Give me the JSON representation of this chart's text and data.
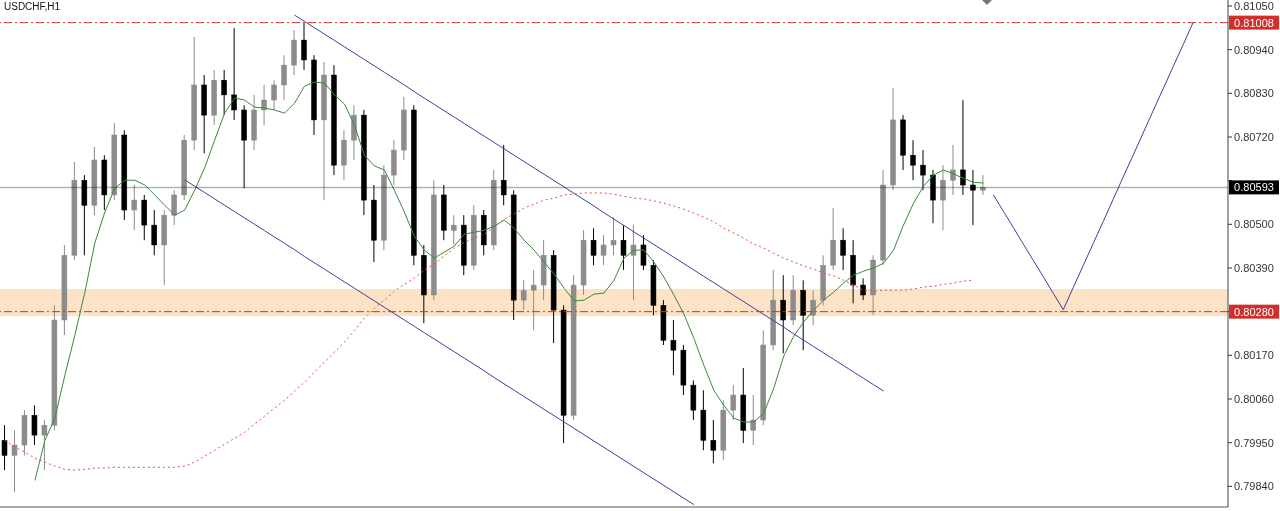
{
  "chart_data": {
    "type": "candlestick",
    "title": "USDCHF,H1",
    "categories": [
      null,
      null,
      null,
      null,
      null,
      null,
      null,
      null,
      null,
      null,
      null,
      null,
      null,
      null,
      null,
      null,
      null,
      null,
      null,
      null,
      null,
      null,
      null,
      null,
      null,
      null,
      null,
      null,
      null,
      null,
      null,
      null,
      null,
      null,
      null,
      null,
      null,
      null,
      null,
      null,
      null,
      null,
      null,
      null,
      null,
      null,
      null,
      null,
      null,
      null,
      null,
      null,
      null,
      null,
      null,
      null,
      null,
      null,
      null,
      null,
      null,
      null,
      null,
      null,
      null,
      null,
      null,
      null,
      null,
      null,
      null,
      null,
      null,
      null,
      null,
      null,
      null,
      null,
      null,
      null,
      null,
      null,
      null,
      null,
      null,
      null,
      null,
      null,
      null,
      null,
      null,
      null,
      null,
      null,
      null,
      null,
      null,
      null,
      null,
      null,
      null,
      null,
      null,
      null,
      null,
      null,
      null,
      null,
      null,
      null,
      null,
      null,
      null,
      null,
      null,
      null,
      null,
      null,
      null,
      null,
      null,
      null,
      null
    ],
    "ohlc": [
      [
        0.79956,
        0.79994,
        0.79881,
        0.79918
      ],
      [
        0.79918,
        0.79981,
        0.79825,
        0.79944
      ],
      [
        0.79944,
        0.80032,
        0.79918,
        0.80019
      ],
      [
        0.80019,
        0.80044,
        0.79944,
        0.79969
      ],
      [
        0.79969,
        0.80007,
        0.79881,
        0.79994
      ],
      [
        0.79994,
        0.80296,
        0.79981,
        0.80259
      ],
      [
        0.80259,
        0.80448,
        0.80221,
        0.80422
      ],
      [
        0.80422,
        0.80657,
        0.8041,
        0.80611
      ],
      [
        0.80611,
        0.80624,
        0.80422,
        0.80548
      ],
      [
        0.80548,
        0.80695,
        0.80523,
        0.80662
      ],
      [
        0.80662,
        0.80674,
        0.80536,
        0.80574
      ],
      [
        0.80574,
        0.80755,
        0.80561,
        0.80725
      ],
      [
        0.80725,
        0.80737,
        0.80511,
        0.80536
      ],
      [
        0.80536,
        0.80599,
        0.80485,
        0.80561
      ],
      [
        0.80561,
        0.80574,
        0.8046,
        0.80498
      ],
      [
        0.80498,
        0.80536,
        0.80422,
        0.80448
      ],
      [
        0.80448,
        0.80536,
        0.80347,
        0.80523
      ],
      [
        0.80523,
        0.80586,
        0.80498,
        0.80574
      ],
      [
        0.80574,
        0.80725,
        0.80561,
        0.80712
      ],
      [
        0.80712,
        0.80972,
        0.80687,
        0.80851
      ],
      [
        0.80851,
        0.80876,
        0.80679,
        0.80775
      ],
      [
        0.80775,
        0.80889,
        0.8075,
        0.80863
      ],
      [
        0.80863,
        0.80889,
        0.80775,
        0.80826
      ],
      [
        0.80826,
        0.80994,
        0.80763,
        0.80788
      ],
      [
        0.80788,
        0.808,
        0.80591,
        0.80712
      ],
      [
        0.80712,
        0.80826,
        0.80687,
        0.80788
      ],
      [
        0.80788,
        0.80851,
        0.8075,
        0.80813
      ],
      [
        0.80813,
        0.80863,
        0.80788,
        0.80851
      ],
      [
        0.80851,
        0.80926,
        0.80813,
        0.80901
      ],
      [
        0.80901,
        0.80989,
        0.80876,
        0.80964
      ],
      [
        0.80964,
        0.81007,
        0.80889,
        0.80914
      ],
      [
        0.80914,
        0.80926,
        0.80725,
        0.80763
      ],
      [
        0.80763,
        0.80909,
        0.80561,
        0.80876
      ],
      [
        0.80876,
        0.80901,
        0.80624,
        0.80649
      ],
      [
        0.80649,
        0.80737,
        0.80611,
        0.80712
      ],
      [
        0.80712,
        0.808,
        0.80662,
        0.80775
      ],
      [
        0.80775,
        0.80788,
        0.80523,
        0.80561
      ],
      [
        0.80561,
        0.80599,
        0.80405,
        0.8046
      ],
      [
        0.8046,
        0.80649,
        0.80435,
        0.80624
      ],
      [
        0.80624,
        0.80712,
        0.80599,
        0.80687
      ],
      [
        0.80687,
        0.80821,
        0.80662,
        0.80788
      ],
      [
        0.80788,
        0.808,
        0.80397,
        0.80422
      ],
      [
        0.80422,
        0.80448,
        0.80251,
        0.80322
      ],
      [
        0.80322,
        0.80611,
        0.80309,
        0.80574
      ],
      [
        0.80574,
        0.80599,
        0.8046,
        0.80485
      ],
      [
        0.80485,
        0.80523,
        0.80448,
        0.80498
      ],
      [
        0.80498,
        0.80523,
        0.80372,
        0.80397
      ],
      [
        0.80397,
        0.80548,
        0.80385,
        0.80523
      ],
      [
        0.80523,
        0.80536,
        0.80422,
        0.80448
      ],
      [
        0.80448,
        0.80637,
        0.80435,
        0.80611
      ],
      [
        0.80611,
        0.807,
        0.80548,
        0.80574
      ],
      [
        0.80574,
        0.80586,
        0.80259,
        0.80309
      ],
      [
        0.80309,
        0.80359,
        0.80284,
        0.80334
      ],
      [
        0.80334,
        0.80385,
        0.80233,
        0.80347
      ],
      [
        0.80347,
        0.8046,
        0.80309,
        0.80422
      ],
      [
        0.80422,
        0.80435,
        0.80201,
        0.80284
      ],
      [
        0.80284,
        0.80296,
        0.79949,
        0.80019
      ],
      [
        0.80019,
        0.80372,
        0.80007,
        0.80347
      ],
      [
        0.80347,
        0.80485,
        0.80322,
        0.8046
      ],
      [
        0.8046,
        0.8049,
        0.80397,
        0.80422
      ],
      [
        0.80422,
        0.80473,
        0.80397,
        0.80448
      ],
      [
        0.80448,
        0.80518,
        0.80422,
        0.8046
      ],
      [
        0.8046,
        0.80498,
        0.80385,
        0.80422
      ],
      [
        0.80422,
        0.80498,
        0.80309,
        0.80448
      ],
      [
        0.80448,
        0.80473,
        0.80385,
        0.80397
      ],
      [
        0.80397,
        0.8041,
        0.80271,
        0.80296
      ],
      [
        0.80296,
        0.80309,
        0.80196,
        0.80208
      ],
      [
        0.80208,
        0.80259,
        0.8012,
        0.80183
      ],
      [
        0.80183,
        0.80196,
        0.8007,
        0.80095
      ],
      [
        0.80095,
        0.80107,
        0.80007,
        0.80032
      ],
      [
        0.80032,
        0.80082,
        0.79931,
        0.79956
      ],
      [
        0.79956,
        0.80007,
        0.79898,
        0.79931
      ],
      [
        0.79931,
        0.80057,
        0.79906,
        0.80032
      ],
      [
        0.80032,
        0.80095,
        0.80007,
        0.8007
      ],
      [
        0.8007,
        0.80138,
        0.79949,
        0.79981
      ],
      [
        0.79981,
        0.8007,
        0.79944,
        0.80007
      ],
      [
        0.80007,
        0.80233,
        0.79994,
        0.80196
      ],
      [
        0.80196,
        0.80385,
        0.80183,
        0.80309
      ],
      [
        0.80309,
        0.80372,
        0.80175,
        0.80259
      ],
      [
        0.80259,
        0.80372,
        0.80246,
        0.80334
      ],
      [
        0.80334,
        0.80359,
        0.80183,
        0.80271
      ],
      [
        0.80271,
        0.80334,
        0.80246,
        0.80309
      ],
      [
        0.80309,
        0.80422,
        0.80296,
        0.80397
      ],
      [
        0.80397,
        0.80541,
        0.80385,
        0.8046
      ],
      [
        0.8046,
        0.8049,
        0.80385,
        0.80422
      ],
      [
        0.80422,
        0.8046,
        0.80301,
        0.80347
      ],
      [
        0.80347,
        0.80364,
        0.80309,
        0.80322
      ],
      [
        0.80322,
        0.80422,
        0.80271,
        0.8041
      ],
      [
        0.8041,
        0.80637,
        0.80397,
        0.80599
      ],
      [
        0.80599,
        0.80843,
        0.80586,
        0.80763
      ],
      [
        0.80763,
        0.80775,
        0.80637,
        0.80674
      ],
      [
        0.80674,
        0.80712,
        0.80611,
        0.80649
      ],
      [
        0.80649,
        0.80687,
        0.80586,
        0.80624
      ],
      [
        0.80624,
        0.80637,
        0.80503,
        0.80561
      ],
      [
        0.80561,
        0.80649,
        0.80485,
        0.80611
      ],
      [
        0.80611,
        0.807,
        0.80574,
        0.80637
      ],
      [
        0.80637,
        0.80813,
        0.80574,
        0.80599
      ],
      [
        0.80599,
        0.80637,
        0.80498,
        0.80586
      ],
      [
        0.80586,
        0.80624,
        0.80574,
        0.80593
      ],
      null,
      null,
      null,
      null,
      null,
      null,
      null,
      null,
      null,
      null,
      null,
      null,
      null,
      null,
      null,
      null,
      null,
      null,
      null,
      null,
      null,
      null,
      null,
      null
    ],
    "colors": [
      "#000000",
      "#8c8c8c",
      "#8c8c8c",
      "#000000",
      "#8c8c8c",
      "#8c8c8c",
      "#8c8c8c",
      "#8c8c8c",
      "#000000",
      "#8c8c8c",
      "#000000",
      "#8c8c8c",
      "#000000",
      "#8c8c8c",
      "#000000",
      "#000000",
      "#8c8c8c",
      "#8c8c8c",
      "#8c8c8c",
      "#8c8c8c",
      "#000000",
      "#8c8c8c",
      "#000000",
      "#000000",
      "#000000",
      "#8c8c8c",
      "#8c8c8c",
      "#8c8c8c",
      "#8c8c8c",
      "#8c8c8c",
      "#000000",
      "#000000",
      "#8c8c8c",
      "#000000",
      "#8c8c8c",
      "#8c8c8c",
      "#000000",
      "#000000",
      "#8c8c8c",
      "#8c8c8c",
      "#8c8c8c",
      "#000000",
      "#000000",
      "#8c8c8c",
      "#000000",
      "#8c8c8c",
      "#000000",
      "#8c8c8c",
      "#000000",
      "#8c8c8c",
      "#000000",
      "#000000",
      "#8c8c8c",
      "#8c8c8c",
      "#8c8c8c",
      "#000000",
      "#000000",
      "#8c8c8c",
      "#8c8c8c",
      "#000000",
      "#8c8c8c",
      "#8c8c8c",
      "#000000",
      "#8c8c8c",
      "#000000",
      "#000000",
      "#000000",
      "#000000",
      "#000000",
      "#000000",
      "#000000",
      "#000000",
      "#8c8c8c",
      "#8c8c8c",
      "#000000",
      "#8c8c8c",
      "#8c8c8c",
      "#8c8c8c",
      "#000000",
      "#8c8c8c",
      "#000000",
      "#8c8c8c",
      "#8c8c8c",
      "#8c8c8c",
      "#000000",
      "#000000",
      "#000000",
      "#8c8c8c",
      "#8c8c8c",
      "#8c8c8c",
      "#000000",
      "#000000",
      "#000000",
      "#000000",
      "#8c8c8c",
      "#8c8c8c",
      "#000000",
      "#000000",
      "#8c8c8c",
      null,
      null,
      null,
      null,
      null,
      null,
      null,
      null,
      null,
      null,
      null,
      null,
      null,
      null,
      null,
      null,
      null,
      null,
      null,
      null,
      null,
      null,
      null,
      null
    ],
    "series": [
      {
        "type": "line",
        "color": "#e0524a",
        "line_style": "dotted",
        "values": [
          0.79956,
          0.79939,
          0.79926,
          0.79911,
          0.79901,
          0.79891,
          0.79883,
          0.79881,
          0.79883,
          0.79886,
          0.79886,
          0.79888,
          0.79888,
          0.79888,
          0.79888,
          0.79888,
          0.79888,
          0.79888,
          0.79891,
          0.79901,
          0.79916,
          0.79931,
          0.79946,
          0.79961,
          0.79976,
          0.79997,
          0.80017,
          0.80037,
          0.80057,
          0.8008,
          0.80102,
          0.80128,
          0.80153,
          0.80178,
          0.80203,
          0.80233,
          0.80264,
          0.80289,
          0.80309,
          0.80332,
          0.80349,
          0.80364,
          0.80385,
          0.804,
          0.8042,
          0.8044,
          0.80455,
          0.80465,
          0.80475,
          0.80493,
          0.80513,
          0.80526,
          0.80541,
          0.80551,
          0.80561,
          0.80566,
          0.80574,
          0.80576,
          0.80579,
          0.80579,
          0.80579,
          0.80576,
          0.80571,
          0.80566,
          0.80564,
          0.80559,
          0.80553,
          0.80546,
          0.80538,
          0.80528,
          0.80518,
          0.80506,
          0.8049,
          0.80478,
          0.80465,
          0.8045,
          0.8044,
          0.80427,
          0.80415,
          0.80405,
          0.80395,
          0.80387,
          0.80377,
          0.8037,
          0.80359,
          0.80347,
          0.80334,
          0.80332,
          0.80334,
          0.80334,
          0.80334,
          0.80337,
          0.80342,
          0.80344,
          0.80349,
          0.80352,
          0.80357,
          0.80359,
          null,
          null,
          null,
          null,
          null,
          null,
          null,
          null,
          null,
          null,
          null,
          null,
          null,
          null,
          null,
          null,
          null,
          null,
          null,
          null,
          null,
          null,
          null,
          null,
          null
        ]
      },
      {
        "type": "line",
        "color": "#3a8a3a",
        "line_style": "solid",
        "values": [
          null,
          null,
          null,
          0.79855,
          0.79956,
          0.80012,
          0.8012,
          0.80221,
          0.80329,
          0.80453,
          0.80531,
          0.80591,
          0.80611,
          0.80611,
          0.80599,
          0.80574,
          0.80548,
          0.80523,
          0.80536,
          0.80586,
          0.80642,
          0.80712,
          0.8078,
          0.80818,
          0.80813,
          0.80795,
          0.80793,
          0.80788,
          0.8078,
          0.80805,
          0.80848,
          0.80858,
          0.80856,
          0.80826,
          0.80803,
          0.8075,
          0.80674,
          0.80647,
          0.80637,
          0.80586,
          0.80531,
          0.8047,
          0.80435,
          0.80415,
          0.8043,
          0.80445,
          0.80475,
          0.8048,
          0.80485,
          0.80495,
          0.80511,
          0.8049,
          0.8046,
          0.80435,
          0.80405,
          0.80375,
          0.80339,
          0.80307,
          0.80309,
          0.80324,
          0.80327,
          0.80359,
          0.80415,
          0.80435,
          0.80435,
          0.80405,
          0.80367,
          0.80322,
          0.80274,
          0.80213,
          0.80145,
          0.80082,
          0.80044,
          0.80012,
          0.80002,
          0.80002,
          0.80024,
          0.80087,
          0.80168,
          0.80218,
          0.80254,
          0.80284,
          0.80309,
          0.80329,
          0.80352,
          0.80372,
          0.80382,
          0.8039,
          0.80402,
          0.80435,
          0.80498,
          0.80553,
          0.80596,
          0.80624,
          0.80637,
          0.80627,
          0.80616,
          0.80606,
          0.80604,
          null,
          null,
          null,
          null,
          null,
          null,
          null,
          null,
          null,
          null,
          null,
          null,
          null,
          null,
          null,
          null,
          null,
          null,
          null,
          null,
          null,
          null,
          null,
          null
        ]
      },
      {
        "type": "line",
        "color": "#3f3f9a",
        "line_style": "solid",
        "values": [
          null,
          null,
          null,
          null,
          null,
          null,
          null,
          null,
          null,
          null,
          null,
          null,
          null,
          null,
          null,
          null,
          null,
          null,
          null,
          null,
          null,
          null,
          null,
          null,
          null,
          null,
          null,
          null,
          null,
          0.81027,
          0.81011,
          0.80995,
          0.80979,
          0.80963,
          0.80947,
          0.80931,
          0.80915,
          0.80899,
          0.80883,
          0.80867,
          0.80851,
          0.80834,
          0.80818,
          0.80802,
          0.80786,
          0.8077,
          0.80754,
          0.80738,
          0.80722,
          0.80706,
          0.8069,
          0.80674,
          0.80658,
          0.80642,
          0.80626,
          0.8061,
          0.80594,
          0.80578,
          0.80562,
          0.80546,
          0.80529,
          0.80513,
          0.80497,
          0.80481,
          0.80465,
          0.80449,
          0.80433,
          0.80417,
          0.80401,
          0.80385,
          0.80369,
          0.80353,
          0.80337,
          0.80321,
          0.80305,
          0.80289,
          0.80273,
          0.80257,
          0.80241,
          0.80224,
          0.80208,
          0.80192,
          0.80176,
          0.8016,
          0.80144,
          0.80128,
          0.80112,
          0.80096,
          0.8008,
          null,
          null,
          null,
          null,
          null,
          null,
          null,
          null,
          null,
          null,
          null,
          null,
          null,
          null,
          null,
          null,
          null,
          null,
          null,
          null,
          null,
          null,
          null,
          null,
          null,
          null,
          null,
          null,
          null,
          null,
          null,
          null,
          null,
          null
        ]
      },
      {
        "type": "line",
        "color": "#3f3f9a",
        "line_style": "solid",
        "values": [
          null,
          null,
          null,
          null,
          null,
          null,
          null,
          null,
          null,
          null,
          null,
          null,
          null,
          null,
          null,
          null,
          null,
          null,
          0.80612,
          0.80596,
          0.8058,
          0.80564,
          0.80548,
          0.80532,
          0.80516,
          0.805,
          0.80484,
          0.80468,
          0.80452,
          0.80436,
          0.80419,
          0.80403,
          0.80387,
          0.80371,
          0.80355,
          0.80339,
          0.80323,
          0.80307,
          0.80291,
          0.80275,
          0.80259,
          0.80243,
          0.80227,
          0.80211,
          0.80195,
          0.80179,
          0.80163,
          0.80147,
          0.80131,
          0.80114,
          0.80098,
          0.80082,
          0.80066,
          0.8005,
          0.80034,
          0.80018,
          0.80002,
          0.79986,
          0.7997,
          0.79954,
          0.79938,
          0.79922,
          0.79906,
          0.7989,
          0.79874,
          0.79858,
          0.79842,
          0.79826,
          0.7981,
          0.79794,
          null,
          null,
          null,
          null,
          null,
          null,
          null,
          null,
          null,
          null,
          null,
          null,
          null,
          null,
          null,
          null,
          null,
          null,
          null,
          null,
          null,
          null,
          null,
          null,
          null,
          null,
          null,
          null,
          null,
          null,
          null,
          null,
          null,
          null,
          null,
          null,
          null,
          null,
          null,
          null,
          null,
          null,
          null,
          null,
          null,
          null,
          null,
          null,
          null,
          null,
          null,
          null,
          null
        ]
      },
      {
        "type": "line",
        "color": "#3f3f9a",
        "line_style": "solid",
        "values": [
          null,
          null,
          null,
          null,
          null,
          null,
          null,
          null,
          null,
          null,
          null,
          null,
          null,
          null,
          null,
          null,
          null,
          null,
          null,
          null,
          null,
          null,
          null,
          null,
          null,
          null,
          null,
          null,
          null,
          null,
          null,
          null,
          null,
          null,
          null,
          null,
          null,
          null,
          null,
          null,
          null,
          null,
          null,
          null,
          null,
          null,
          null,
          null,
          null,
          null,
          null,
          null,
          null,
          null,
          null,
          null,
          null,
          null,
          null,
          null,
          null,
          null,
          null,
          null,
          null,
          null,
          null,
          null,
          null,
          null,
          null,
          null,
          null,
          null,
          null,
          null,
          null,
          null,
          null,
          null,
          null,
          null,
          null,
          null,
          null,
          null,
          null,
          null,
          null,
          null,
          null,
          null,
          null,
          null,
          null,
          null,
          null,
          null,
          null,
          0.80574,
          0.80533,
          0.80492,
          0.8045,
          0.80409,
          0.80368,
          0.80326,
          0.80285,
          0.80341,
          0.80396,
          0.80452,
          0.80507,
          0.80563,
          0.80619,
          0.80674,
          0.8073,
          0.80786,
          0.80841,
          0.80897,
          0.80952,
          0.81008,
          null,
          null,
          null
        ]
      }
    ],
    "ylim": [
      0.79788,
      0.81065
    ],
    "yticks": [
      {
        "value": 0.8105,
        "label": "0.81050"
      },
      {
        "value": 0.8094,
        "label": "0.80940"
      },
      {
        "value": 0.8083,
        "label": "0.80830"
      },
      {
        "value": 0.8072,
        "label": "0.80720"
      },
      {
        "value": 0.8061,
        "label": null
      },
      {
        "value": 0.805,
        "label": "0.80500"
      },
      {
        "value": 0.8039,
        "label": "0.80390"
      },
      {
        "value": 0.8028,
        "label": null
      },
      {
        "value": 0.8017,
        "label": "0.80170"
      },
      {
        "value": 0.8006,
        "label": "0.80060"
      },
      {
        "value": 0.7995,
        "label": "0.79950"
      },
      {
        "value": 0.7984,
        "label": "0.79840"
      }
    ],
    "bands": [
      {
        "axis": "y",
        "from": 0.80269,
        "to": 0.80337,
        "color": "#fde3c6"
      }
    ],
    "ref_lines": [
      {
        "axis": "y",
        "value": 0.81008,
        "label": "0.81008",
        "color": "#d0302a",
        "line_style": "dashed"
      },
      {
        "axis": "y",
        "value": 0.8028,
        "label": "0.80280",
        "color": "#d0302a",
        "line_style": "dashed"
      },
      {
        "axis": "y",
        "value": 0.80593,
        "label": "0.80593",
        "color": "#000000",
        "line_style": "solid"
      }
    ],
    "tick_labels": "y",
    "marker": "none",
    "grid": false
  }
}
